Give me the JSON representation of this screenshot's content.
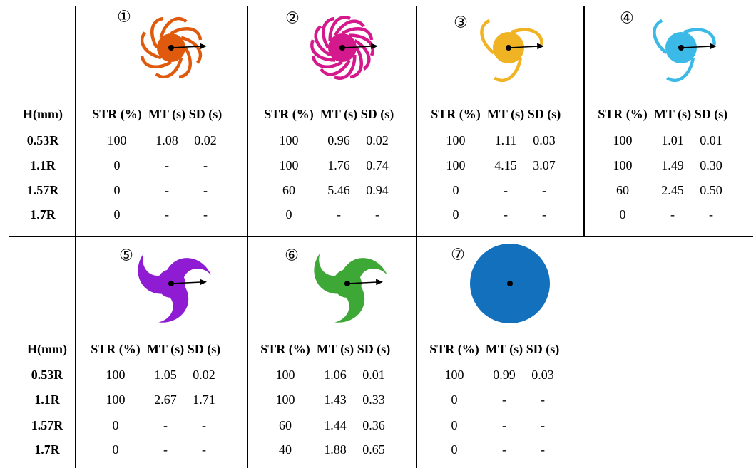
{
  "row_header_label": "H(mm)",
  "column_labels": [
    "STR (%)",
    "MT (s)",
    "SD (s)"
  ],
  "row_labels": [
    "0.53R",
    "1.1R",
    "1.57R",
    "1.7R"
  ],
  "designs": [
    {
      "number": "①",
      "color": "#E05A0E",
      "icon": "rotor-8-thin-curved-blades",
      "rows": [
        [
          "100",
          "1.08",
          "0.02"
        ],
        [
          "0",
          "-",
          "-"
        ],
        [
          "0",
          "-",
          "-"
        ],
        [
          "0",
          "-",
          "-"
        ]
      ]
    },
    {
      "number": "②",
      "color": "#D4198C",
      "icon": "rotor-12-thin-curved-blades",
      "rows": [
        [
          "100",
          "0.96",
          "0.02"
        ],
        [
          "100",
          "1.76",
          "0.74"
        ],
        [
          "60",
          "5.46",
          "0.94"
        ],
        [
          "0",
          "-",
          "-"
        ]
      ]
    },
    {
      "number": "③",
      "color": "#F0B323",
      "icon": "rotor-3-thin-curved-blades",
      "rows": [
        [
          "100",
          "1.11",
          "0.03"
        ],
        [
          "100",
          "4.15",
          "3.07"
        ],
        [
          "0",
          "-",
          "-"
        ],
        [
          "0",
          "-",
          "-"
        ]
      ]
    },
    {
      "number": "④",
      "color": "#3BB9E7",
      "icon": "rotor-3-thin-curved-blades",
      "rows": [
        [
          "100",
          "1.01",
          "0.01"
        ],
        [
          "100",
          "1.49",
          "0.30"
        ],
        [
          "60",
          "2.45",
          "0.50"
        ],
        [
          "0",
          "-",
          "-"
        ]
      ]
    },
    {
      "number": "⑤",
      "color": "#8F1CD3",
      "icon": "rotor-3-wide-curved-blades",
      "rows": [
        [
          "100",
          "1.05",
          "0.02"
        ],
        [
          "100",
          "2.67",
          "1.71"
        ],
        [
          "0",
          "-",
          "-"
        ],
        [
          "0",
          "-",
          "-"
        ]
      ]
    },
    {
      "number": "⑥",
      "color": "#3DA836",
      "icon": "rotor-3-wide-curved-blades",
      "rows": [
        [
          "100",
          "1.06",
          "0.01"
        ],
        [
          "100",
          "1.43",
          "0.33"
        ],
        [
          "60",
          "1.44",
          "0.36"
        ],
        [
          "40",
          "1.88",
          "0.65"
        ]
      ]
    },
    {
      "number": "⑦",
      "color": "#1370BC",
      "icon": "disc-no-blades",
      "rows": [
        [
          "100",
          "0.99",
          "0.03"
        ],
        [
          "0",
          "-",
          "-"
        ],
        [
          "0",
          "-",
          "-"
        ],
        [
          "0",
          "-",
          "-"
        ]
      ]
    }
  ]
}
